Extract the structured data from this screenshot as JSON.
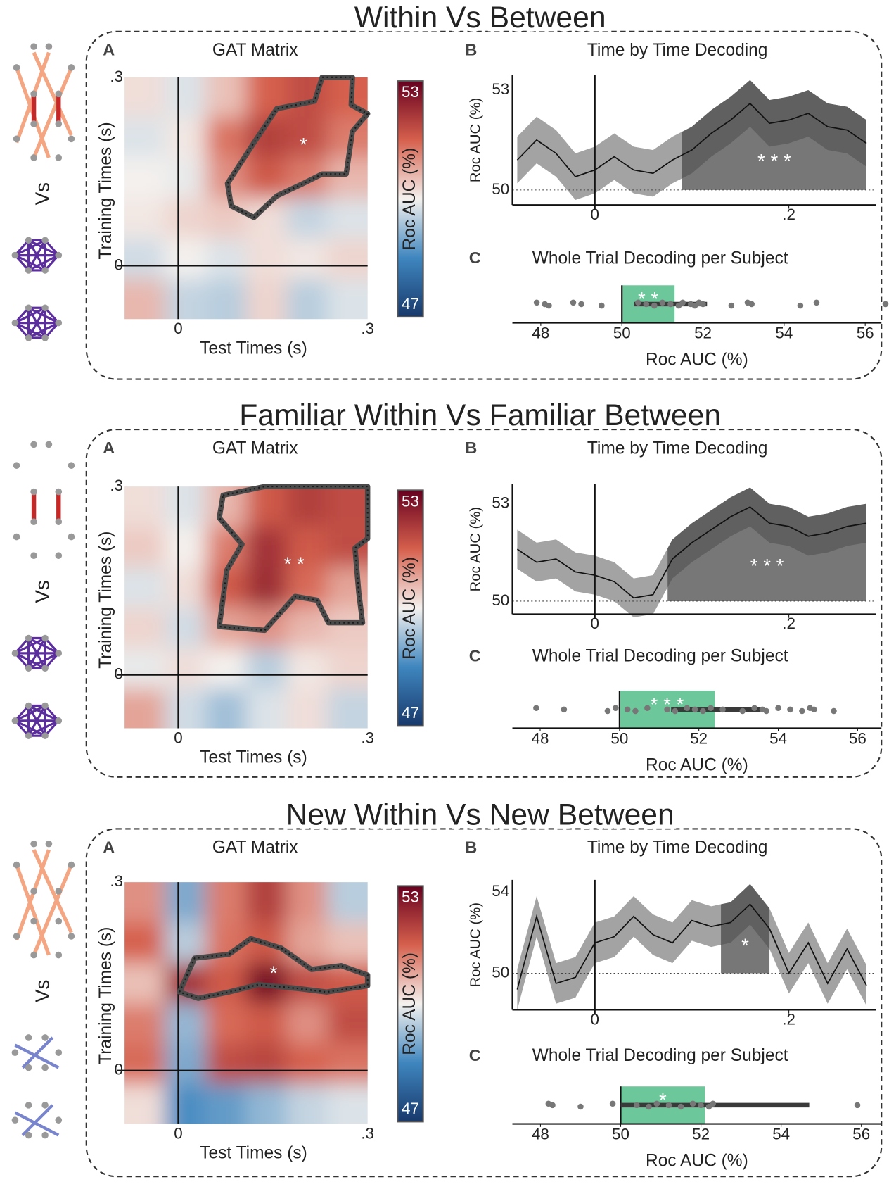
{
  "panels": [
    {
      "title": "Within Vs Between",
      "icon_label": "Vs",
      "gat": {
        "label": "A",
        "title": "GAT Matrix",
        "xlabel": "Test Times (s)",
        "ylabel": "Training Times (s)",
        "xlim": [
          -0.085,
          0.3
        ],
        "ylim": [
          -0.085,
          0.3
        ],
        "xticks": [
          0,
          {
            "value": 0.3,
            "label": ".3"
          }
        ],
        "yticks": [
          0,
          {
            "value": 0.3,
            "label": ".3"
          }
        ],
        "grid": [
          [
            50.2,
            49.8,
            50.5,
            51.5,
            51.8,
            51.5
          ],
          [
            49.8,
            50.1,
            51.3,
            52.0,
            51.8,
            51.2
          ],
          [
            50.0,
            49.9,
            51.0,
            51.6,
            51.2,
            50.6
          ],
          [
            50.1,
            50.3,
            50.4,
            50.2,
            49.6,
            49.8
          ],
          [
            49.7,
            50.0,
            49.8,
            50.2,
            50.1,
            50.3
          ],
          [
            50.6,
            49.6,
            49.5,
            50.3,
            49.5,
            49.8
          ]
        ],
        "cluster": [
          [
            0.228,
            0.3
          ],
          [
            0.276,
            0.3
          ],
          [
            0.274,
            0.256
          ],
          [
            0.3,
            0.242
          ],
          [
            0.276,
            0.214
          ],
          [
            0.266,
            0.146
          ],
          [
            0.228,
            0.146
          ],
          [
            0.198,
            0.131
          ],
          [
            0.156,
            0.111
          ],
          [
            0.12,
            0.077
          ],
          [
            0.084,
            0.095
          ],
          [
            0.078,
            0.131
          ],
          [
            0.12,
            0.196
          ],
          [
            0.156,
            0.25
          ],
          [
            0.216,
            0.262
          ]
        ],
        "annotation": "*",
        "colorbar": {
          "label": "Roc AUC (%)",
          "lim": [
            47,
            53
          ],
          "ticks": [
            47,
            53
          ],
          "colormap": [
            "#18396b",
            "#3f86bf",
            "#f4f1ee",
            "#d6604d",
            "#67001f"
          ]
        }
      },
      "tbt": {
        "label": "B",
        "title": "Time by Time Decoding",
        "ylabel": "Roc AUC (%)",
        "xlim": [
          -0.085,
          0.29
        ],
        "ylim": [
          49.55,
          53.45
        ],
        "xticks": [
          0,
          {
            "value": 0.2,
            "label": ".2"
          }
        ],
        "yticks": [
          50,
          53
        ],
        "chance": 50,
        "x": [
          -0.08,
          -0.06,
          -0.04,
          -0.02,
          0,
          0.02,
          0.04,
          0.06,
          0.08,
          0.1,
          0.12,
          0.14,
          0.16,
          0.18,
          0.2,
          0.22,
          0.24,
          0.26,
          0.28
        ],
        "values": [
          50.9,
          51.5,
          51.1,
          50.4,
          50.6,
          51.0,
          50.6,
          50.5,
          50.9,
          51.2,
          51.7,
          52.1,
          52.6,
          52.0,
          52.1,
          52.3,
          51.9,
          51.8,
          51.4
        ],
        "lower": [
          50.2,
          50.8,
          50.4,
          49.7,
          49.9,
          50.3,
          49.9,
          49.8,
          50.2,
          50.5,
          51.0,
          51.4,
          51.9,
          51.3,
          51.4,
          51.6,
          51.2,
          51.1,
          50.7
        ],
        "upper": [
          51.6,
          52.2,
          51.8,
          51.1,
          51.3,
          51.7,
          51.3,
          51.2,
          51.6,
          51.9,
          52.4,
          52.8,
          53.3,
          52.7,
          52.8,
          53.0,
          52.6,
          52.5,
          52.1
        ],
        "window": [
          0.09,
          0.28
        ],
        "annotation": "* * *"
      },
      "whole": {
        "label": "C",
        "title": "Whole Trial Decoding per Subject",
        "xlabel": "Roc AUC (%)",
        "xlim": [
          47.3,
          56.4
        ],
        "xticks": [
          48,
          50,
          52,
          54,
          56
        ],
        "values": [
          47.9,
          48.1,
          48.2,
          48.8,
          49.0,
          49.5,
          50.4,
          50.6,
          50.8,
          51.0,
          51.2,
          51.4,
          51.5,
          51.7,
          51.8,
          51.9,
          52.0,
          52.7,
          53.1,
          53.2,
          54.4,
          54.8,
          56.5
        ],
        "box": [
          50,
          51.3
        ],
        "whisker": [
          50.3,
          52.1
        ],
        "annotation": "* *"
      }
    },
    {
      "title": "Familiar  Within Vs Familiar Between",
      "icon_label": "Vs",
      "gat": {
        "label": "A",
        "title": "GAT Matrix",
        "xlabel": "Test Times (s)",
        "ylabel": "Training Times (s)",
        "xlim": [
          -0.085,
          0.3
        ],
        "ylim": [
          -0.085,
          0.3
        ],
        "xticks": [
          0,
          {
            "value": 0.3,
            "label": ".3"
          }
        ],
        "yticks": [
          0,
          {
            "value": 0.3,
            "label": ".3"
          }
        ],
        "grid": [
          [
            50.2,
            49.8,
            50.6,
            51.6,
            52.0,
            51.8
          ],
          [
            50.4,
            50.0,
            51.2,
            52.2,
            51.6,
            51.8
          ],
          [
            49.8,
            50.2,
            51.6,
            52.3,
            51.4,
            50.8
          ],
          [
            50.3,
            49.7,
            50.8,
            51.0,
            50.6,
            50.4
          ],
          [
            49.9,
            50.2,
            50.0,
            49.5,
            50.1,
            50.3
          ],
          [
            50.8,
            49.7,
            49.3,
            49.8,
            50.2,
            49.6
          ]
        ],
        "cluster": [
          [
            0.071,
            0.286
          ],
          [
            0.137,
            0.3
          ],
          [
            0.3,
            0.3
          ],
          [
            0.3,
            0.217
          ],
          [
            0.28,
            0.202
          ],
          [
            0.286,
            0.131
          ],
          [
            0.292,
            0.083
          ],
          [
            0.238,
            0.083
          ],
          [
            0.22,
            0.119
          ],
          [
            0.185,
            0.125
          ],
          [
            0.137,
            0.071
          ],
          [
            0.065,
            0.077
          ],
          [
            0.077,
            0.167
          ],
          [
            0.101,
            0.208
          ],
          [
            0.065,
            0.25
          ]
        ],
        "annotation": "* *",
        "colorbar": {
          "label": "Roc AUC (%)",
          "lim": [
            47,
            53
          ],
          "ticks": [
            47,
            53
          ],
          "colormap": [
            "#18396b",
            "#3f86bf",
            "#f4f1ee",
            "#d6604d",
            "#67001f"
          ]
        }
      },
      "tbt": {
        "label": "B",
        "title": "Time by Time Decoding",
        "ylabel": "Roc AUC (%)",
        "xlim": [
          -0.085,
          0.29
        ],
        "ylim": [
          49.6,
          53.6
        ],
        "xticks": [
          0,
          {
            "value": 0.2,
            "label": ".2"
          }
        ],
        "yticks": [
          50,
          53
        ],
        "chance": 50,
        "x": [
          -0.08,
          -0.06,
          -0.04,
          -0.02,
          0,
          0.02,
          0.04,
          0.06,
          0.08,
          0.1,
          0.12,
          0.14,
          0.16,
          0.18,
          0.2,
          0.22,
          0.24,
          0.26,
          0.28
        ],
        "values": [
          51.6,
          51.2,
          51.3,
          50.9,
          50.8,
          50.6,
          50.1,
          50.2,
          51.3,
          51.8,
          52.2,
          52.6,
          52.9,
          52.4,
          52.3,
          52.0,
          52.1,
          52.3,
          52.4
        ],
        "lower": [
          51.0,
          50.6,
          50.7,
          50.3,
          50.2,
          50.0,
          49.5,
          49.6,
          50.7,
          51.2,
          51.6,
          52.0,
          52.3,
          51.8,
          51.7,
          51.4,
          51.5,
          51.7,
          51.8
        ],
        "upper": [
          52.2,
          51.8,
          51.9,
          51.5,
          51.4,
          51.2,
          50.7,
          50.8,
          51.9,
          52.4,
          52.8,
          53.2,
          53.5,
          53.0,
          52.9,
          52.6,
          52.7,
          52.9,
          53.0
        ],
        "window": [
          0.075,
          0.28
        ],
        "annotation": "* * *"
      },
      "whole": {
        "label": "C",
        "title": "Whole Trial Decoding per Subject",
        "xlabel": "Roc AUC (%)",
        "xlim": [
          47.3,
          56.6
        ],
        "xticks": [
          48,
          50,
          52,
          54,
          56
        ],
        "values": [
          47.9,
          48.6,
          49.7,
          49.9,
          50.2,
          50.4,
          50.7,
          51.2,
          51.4,
          51.7,
          51.9,
          52.1,
          52.3,
          52.6,
          53.1,
          53.4,
          53.6,
          53.7,
          54.0,
          54.3,
          54.6,
          54.8,
          54.9,
          55.4
        ],
        "box": [
          50,
          52.4
        ],
        "whisker": [
          51.3,
          53.6
        ],
        "annotation": "* * *"
      }
    },
    {
      "title": "New Within Vs New Between",
      "icon_label": "Vs",
      "gat": {
        "label": "A",
        "title": "GAT Matrix",
        "xlabel": "Test Times (s)",
        "ylabel": "Training Times (s)",
        "xlim": [
          -0.085,
          0.3
        ],
        "ylim": [
          -0.085,
          0.3
        ],
        "xticks": [
          0,
          {
            "value": 0.3,
            "label": ".3"
          }
        ],
        "yticks": [
          0,
          {
            "value": 0.3,
            "label": ".3"
          }
        ],
        "grid": [
          [
            51.0,
            49.0,
            51.2,
            52.0,
            51.0,
            49.5
          ],
          [
            51.5,
            49.5,
            51.3,
            51.6,
            50.8,
            50.5
          ],
          [
            50.5,
            52.2,
            51.6,
            52.8,
            51.8,
            51.6
          ],
          [
            51.2,
            49.2,
            51.4,
            51.6,
            51.0,
            51.8
          ],
          [
            51.4,
            49.0,
            51.8,
            51.9,
            51.5,
            51.3
          ],
          [
            50.2,
            48.6,
            48.8,
            49.2,
            49.6,
            49.8
          ]
        ],
        "cluster": [
          [
            0.002,
            0.125
          ],
          [
            0.026,
            0.179
          ],
          [
            0.08,
            0.185
          ],
          [
            0.115,
            0.21
          ],
          [
            0.163,
            0.195
          ],
          [
            0.211,
            0.161
          ],
          [
            0.258,
            0.167
          ],
          [
            0.3,
            0.152
          ],
          [
            0.3,
            0.135
          ],
          [
            0.235,
            0.125
          ],
          [
            0.187,
            0.131
          ],
          [
            0.127,
            0.137
          ],
          [
            0.08,
            0.125
          ],
          [
            0.032,
            0.115
          ]
        ],
        "annotation": "*",
        "colorbar": {
          "label": "Roc AUC (%)",
          "lim": [
            47,
            53
          ],
          "ticks": [
            47,
            53
          ],
          "colormap": [
            "#18396b",
            "#3f86bf",
            "#f4f1ee",
            "#d6604d",
            "#67001f"
          ]
        }
      },
      "tbt": {
        "label": "B",
        "title": "Time by Time Decoding",
        "ylabel": "Roc AUC (%)",
        "xlim": [
          -0.085,
          0.29
        ],
        "ylim": [
          48.2,
          54.6
        ],
        "xticks": [
          0,
          {
            "value": 0.2,
            "label": ".2"
          }
        ],
        "yticks": [
          50,
          54
        ],
        "chance": 50,
        "x": [
          -0.08,
          -0.06,
          -0.04,
          -0.02,
          0,
          0.02,
          0.04,
          0.06,
          0.08,
          0.1,
          0.12,
          0.14,
          0.16,
          0.18,
          0.2,
          0.22,
          0.24,
          0.26,
          0.28
        ],
        "values": [
          49.2,
          52.8,
          49.5,
          49.8,
          51.5,
          51.8,
          52.8,
          51.9,
          51.5,
          52.6,
          52.3,
          52.5,
          53.4,
          52.2,
          50.0,
          51.5,
          49.5,
          51.2,
          49.4
        ],
        "lower": [
          48.2,
          51.8,
          48.5,
          48.8,
          50.5,
          50.8,
          51.8,
          50.9,
          50.5,
          51.6,
          51.3,
          51.5,
          52.4,
          51.2,
          49.0,
          50.5,
          48.5,
          50.2,
          48.4
        ],
        "upper": [
          50.2,
          53.8,
          50.5,
          50.8,
          52.5,
          52.8,
          53.8,
          52.9,
          52.5,
          53.6,
          53.3,
          53.5,
          54.4,
          53.2,
          51.0,
          52.5,
          50.5,
          52.2,
          50.4
        ],
        "window": [
          0.13,
          0.18
        ],
        "annotation": "*"
      },
      "whole": {
        "label": "C",
        "title": "Whole Trial Decoding per Subject",
        "xlabel": "Roc AUC (%)",
        "xlim": [
          47.3,
          56.5
        ],
        "xticks": [
          48,
          50,
          52,
          54,
          56
        ],
        "values": [
          48.2,
          48.3,
          49.0,
          49.8,
          50.4,
          50.7,
          50.9,
          51.2,
          51.5,
          51.8,
          52.0,
          52.2,
          52.3,
          55.9
        ],
        "box": [
          50,
          52.1
        ],
        "whisker": [
          50,
          54.7
        ],
        "annotation": "*"
      }
    }
  ]
}
